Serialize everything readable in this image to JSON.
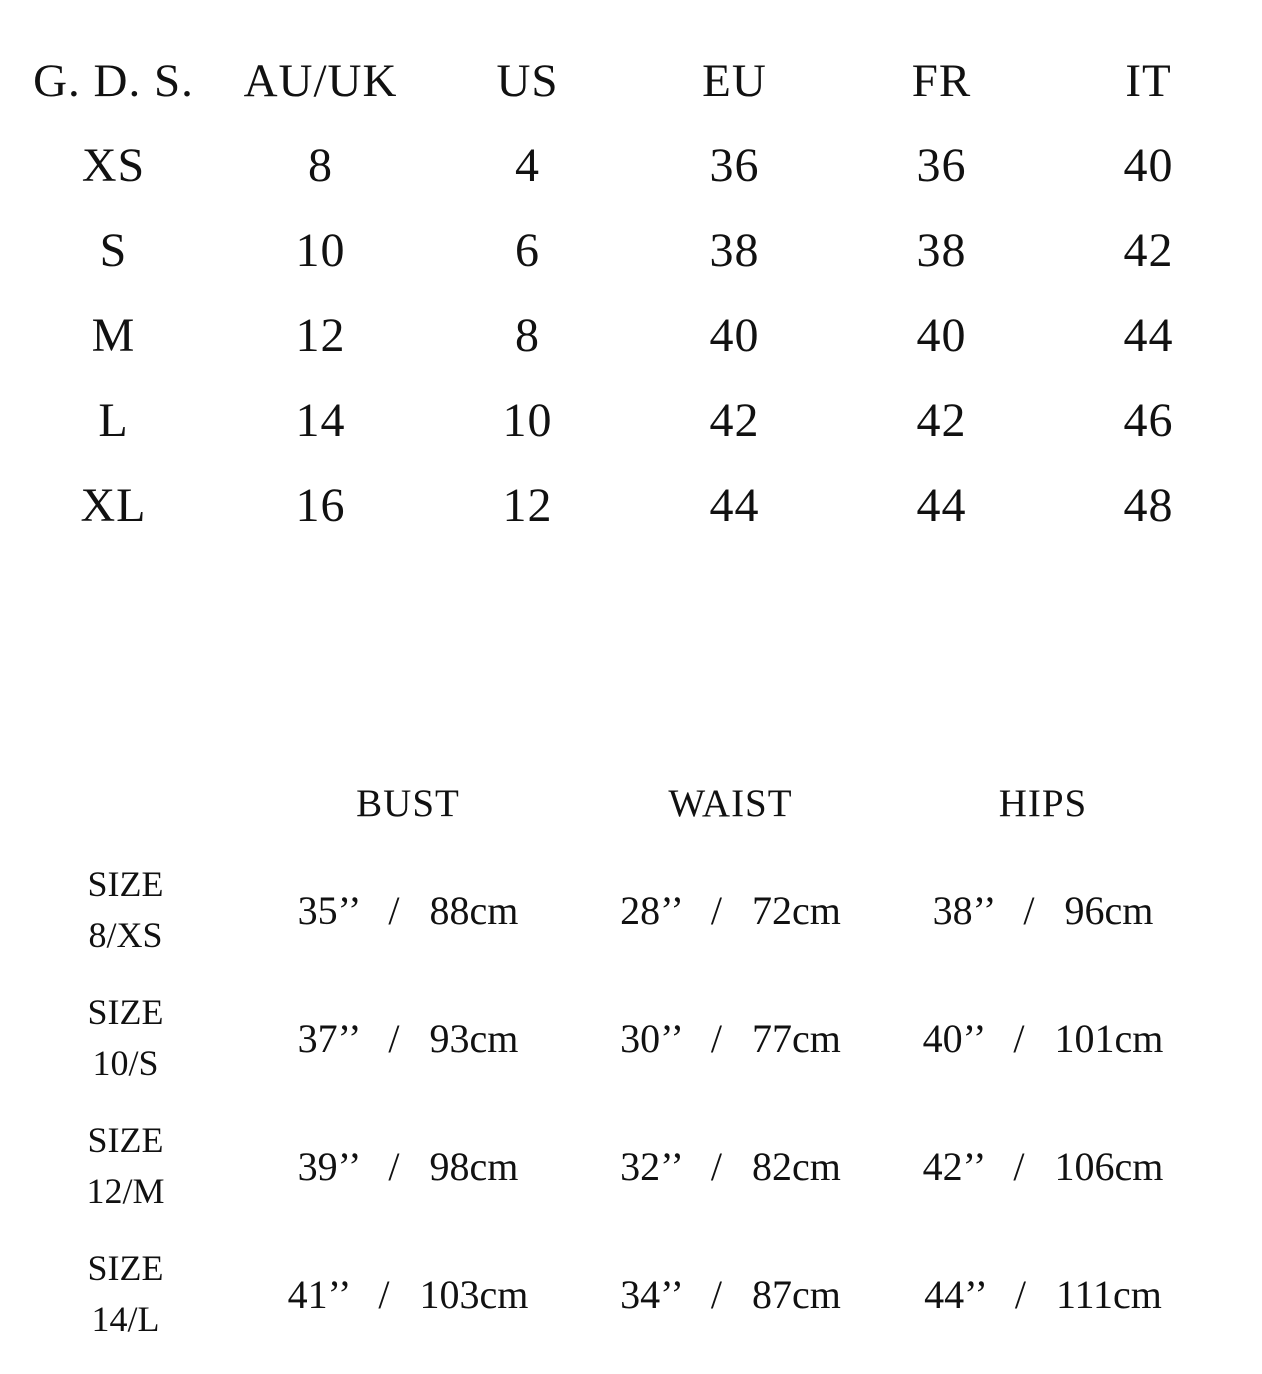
{
  "page": {
    "background_color": "#ffffff",
    "text_color": "#111111",
    "kind": "garment size chart"
  },
  "conversion_table": {
    "columns": [
      "G. D. S.",
      "AU/UK",
      "US",
      "EU",
      "FR",
      "IT"
    ],
    "rows": [
      [
        "XS",
        "8",
        "4",
        "36",
        "36",
        "40"
      ],
      [
        "S",
        "10",
        "6",
        "38",
        "38",
        "42"
      ],
      [
        "M",
        "12",
        "8",
        "40",
        "40",
        "44"
      ],
      [
        "L",
        "14",
        "10",
        "42",
        "42",
        "46"
      ],
      [
        "XL",
        "16",
        "12",
        "44",
        "44",
        "48"
      ]
    ]
  },
  "measurement_table": {
    "columns": [
      "BUST",
      "WAIST",
      "HIPS"
    ],
    "rows": [
      {
        "label": [
          "SIZE",
          "8/XS"
        ],
        "values": [
          "35’’ / 88cm",
          "28’’ / 72cm",
          "38’’ / 96cm"
        ]
      },
      {
        "label": [
          "SIZE",
          "10/S"
        ],
        "values": [
          "37’’ / 93cm",
          "30’’ / 77cm",
          "40’’ / 101cm"
        ]
      },
      {
        "label": [
          "SIZE",
          "12/M"
        ],
        "values": [
          "39’’ / 98cm",
          "32’’ / 82cm",
          "42’’ / 106cm"
        ]
      },
      {
        "label": [
          "SIZE",
          "14/L"
        ],
        "values": [
          "41’’ / 103cm",
          "34’’ / 87cm",
          "44’’ / 111cm"
        ]
      }
    ]
  }
}
